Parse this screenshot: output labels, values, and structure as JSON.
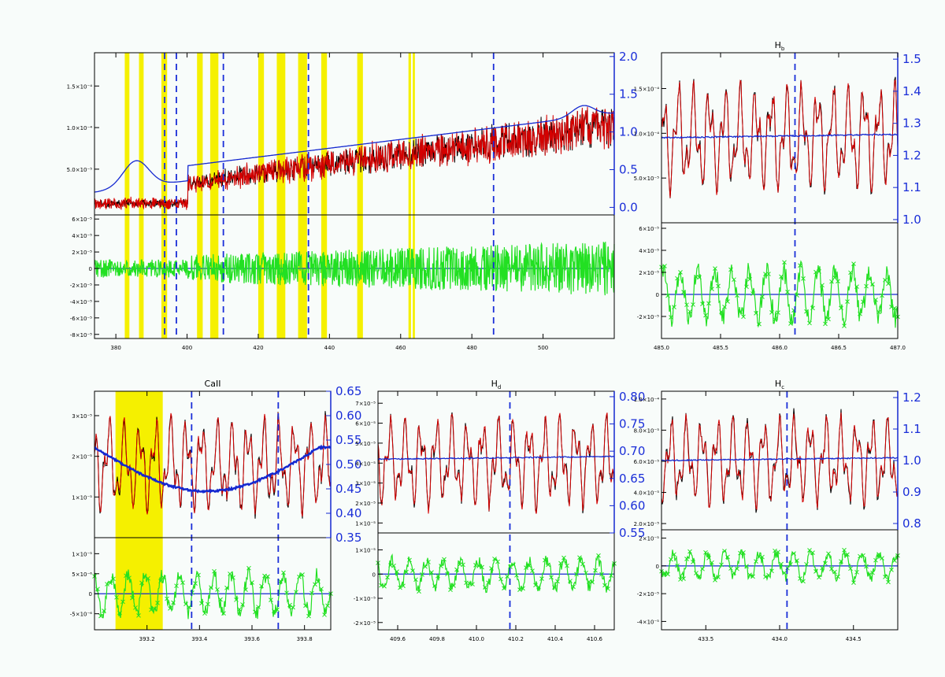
{
  "colors": {
    "observed": "#000000",
    "model": "#d40000",
    "continuum": "#1428d0",
    "residual": "#22e022",
    "mask": "#f5f000",
    "line_marker": "#1a2ed8"
  },
  "chart_data": [
    {
      "id": "full",
      "type": "line",
      "title": "",
      "x": {
        "ticks": [
          380,
          400,
          420,
          440,
          460,
          480,
          500
        ],
        "range": [
          374,
          520
        ]
      },
      "upper": {
        "y_ticks": [
          "5.0×10⁻⁵",
          "1.0×10⁻⁴",
          "1.5×10⁻⁴"
        ],
        "y_values": [
          5e-05,
          0.0001,
          0.00015
        ],
        "y_range": [
          -5e-06,
          0.00019
        ],
        "right_ticks": [
          "0.0",
          "0.5",
          "1.0",
          "1.5",
          "2.0"
        ],
        "right_values": [
          0.0,
          0.5,
          1.0,
          1.5,
          2.0
        ],
        "right_range": [
          -0.1,
          2.05
        ]
      },
      "lower": {
        "y_ticks": [
          "6×10⁻⁵",
          "4×10⁻⁵",
          "2×10⁻⁵",
          "0",
          "-2×10⁻⁵",
          "-4×10⁻⁵",
          "-6×10⁻⁵",
          "-8×10⁻⁵"
        ],
        "y_values": [
          6e-05,
          4e-05,
          2e-05,
          0,
          -2e-05,
          -4e-05,
          -6e-05,
          -8e-05
        ],
        "y_range": [
          -8.5e-05,
          6.5e-05
        ]
      },
      "mask_regions": [
        [
          382.5,
          383.8
        ],
        [
          386.5,
          387.8
        ],
        [
          392.8,
          394.4
        ],
        [
          402.8,
          404.4
        ],
        [
          406.5,
          408.8
        ],
        [
          420.0,
          421.6
        ],
        [
          425.2,
          427.6
        ],
        [
          431.2,
          433.7
        ],
        [
          437.7,
          439.3
        ],
        [
          447.8,
          449.4
        ],
        [
          462.2,
          462.9
        ],
        [
          463.4,
          464.0
        ]
      ],
      "line_markers": [
        393.7,
        397.0,
        410.2,
        434.1,
        486.1
      ]
    },
    {
      "id": "hbeta",
      "type": "line",
      "title": "H",
      "title_sub": "b",
      "x": {
        "ticks": [
          485.0,
          485.5,
          486.0,
          486.5,
          487.0
        ],
        "labels": [
          "485.0",
          "485.5",
          "486.0",
          "486.5",
          "487.0"
        ],
        "range": [
          485.0,
          487.0
        ]
      },
      "upper": {
        "y_ticks": [
          "5.0×10⁻⁵",
          "1.0×10⁻⁴",
          "1.5×10⁻⁴"
        ],
        "y_values": [
          5e-05,
          0.0001,
          0.00015
        ],
        "y_range": [
          0,
          0.00019
        ],
        "right_ticks": [
          "1.0",
          "1.1",
          "1.2",
          "1.3",
          "1.4",
          "1.5"
        ],
        "right_values": [
          1.0,
          1.1,
          1.2,
          1.3,
          1.4,
          1.5
        ],
        "right_range": [
          0.99,
          1.52
        ]
      },
      "lower": {
        "y_ticks": [
          "6×10⁻⁵",
          "4×10⁻⁵",
          "2×10⁻⁵",
          "0",
          "-2×10⁻⁵"
        ],
        "y_values": [
          6e-05,
          4e-05,
          2e-05,
          0,
          -2e-05
        ],
        "y_range": [
          -4e-05,
          6.5e-05
        ]
      },
      "line_markers": [
        486.13
      ]
    },
    {
      "id": "caii",
      "type": "line",
      "title": "CaII",
      "title_sub": "",
      "x": {
        "ticks": [
          393.2,
          393.4,
          393.6,
          393.8
        ],
        "labels": [
          "393.2",
          "393.4",
          "393.6",
          "393.8"
        ],
        "range": [
          393.0,
          393.9
        ]
      },
      "upper": {
        "y_ticks": [
          "1×10⁻⁵",
          "2×10⁻⁵",
          "3×10⁻⁵"
        ],
        "y_values": [
          1e-05,
          2e-05,
          3e-05
        ],
        "y_range": [
          0,
          3.6e-05
        ],
        "right_ticks": [
          "0.35",
          "0.40",
          "0.45",
          "0.50",
          "0.55",
          "0.60",
          "0.65"
        ],
        "right_values": [
          0.35,
          0.4,
          0.45,
          0.5,
          0.55,
          0.6,
          0.65
        ],
        "right_range": [
          0.35,
          0.65
        ]
      },
      "lower": {
        "y_ticks": [
          "1×10⁻⁵",
          "5×10⁻⁶",
          "0",
          "-5×10⁻⁶"
        ],
        "y_values": [
          1e-05,
          5e-06,
          0,
          -5e-06
        ],
        "y_range": [
          -9e-06,
          1.4e-05
        ]
      },
      "mask_regions": [
        [
          393.08,
          393.26
        ]
      ],
      "line_markers": [
        393.37,
        393.7
      ]
    },
    {
      "id": "hdelta",
      "type": "line",
      "title": "H",
      "title_sub": "d",
      "x": {
        "ticks": [
          409.6,
          409.8,
          410.0,
          410.2,
          410.4,
          410.6
        ],
        "labels": [
          "409.6",
          "409.8",
          "410.0",
          "410.2",
          "410.4",
          "410.6"
        ],
        "range": [
          409.5,
          410.7
        ]
      },
      "upper": {
        "y_ticks": [
          "1×10⁻⁵",
          "2×10⁻⁵",
          "3×10⁻⁵",
          "4×10⁻⁵",
          "5×10⁻⁵",
          "6×10⁻⁵",
          "7×10⁻⁵"
        ],
        "y_values": [
          1e-05,
          2e-05,
          3e-05,
          4e-05,
          5e-05,
          6e-05,
          7e-05
        ],
        "y_range": [
          5e-06,
          7.6e-05
        ],
        "right_ticks": [
          "0.55",
          "0.60",
          "0.65",
          "0.70",
          "0.75",
          "0.80"
        ],
        "right_values": [
          0.55,
          0.6,
          0.65,
          0.7,
          0.75,
          0.8
        ],
        "right_range": [
          0.55,
          0.81
        ]
      },
      "lower": {
        "y_ticks": [
          "1×10⁻⁵",
          "0",
          "-1×10⁻⁵",
          "-2×10⁻⁵"
        ],
        "y_values": [
          1e-05,
          0,
          -1e-05,
          -2e-05
        ],
        "y_range": [
          -2.3e-05,
          1.7e-05
        ]
      },
      "line_markers": [
        410.17
      ]
    },
    {
      "id": "hgamma",
      "type": "line",
      "title": "H",
      "title_sub": "c",
      "x": {
        "ticks": [
          433.5,
          434.0,
          434.5
        ],
        "labels": [
          "433.5",
          "434.0",
          "434.5"
        ],
        "range": [
          433.2,
          434.8
        ]
      },
      "upper": {
        "y_ticks": [
          "2.0×10⁻⁵",
          "4.0×10⁻⁵",
          "6.0×10⁻⁵",
          "8.0×10⁻⁵",
          "1.0×10⁻⁴"
        ],
        "y_values": [
          2e-05,
          4e-05,
          6e-05,
          8e-05,
          0.0001
        ],
        "y_range": [
          1.6e-05,
          0.000105
        ],
        "right_ticks": [
          "0.8",
          "0.9",
          "1.0",
          "1.1",
          "1.2"
        ],
        "right_values": [
          0.8,
          0.9,
          1.0,
          1.1,
          1.2
        ],
        "right_range": [
          0.78,
          1.22
        ]
      },
      "lower": {
        "y_ticks": [
          "2×10⁻⁵",
          "0",
          "-2×10⁻⁵",
          "-4×10⁻⁵"
        ],
        "y_values": [
          2e-05,
          0,
          -2e-05,
          -4e-05
        ],
        "y_range": [
          -4.6e-05,
          2.6e-05
        ]
      },
      "line_markers": [
        434.05
      ]
    }
  ]
}
